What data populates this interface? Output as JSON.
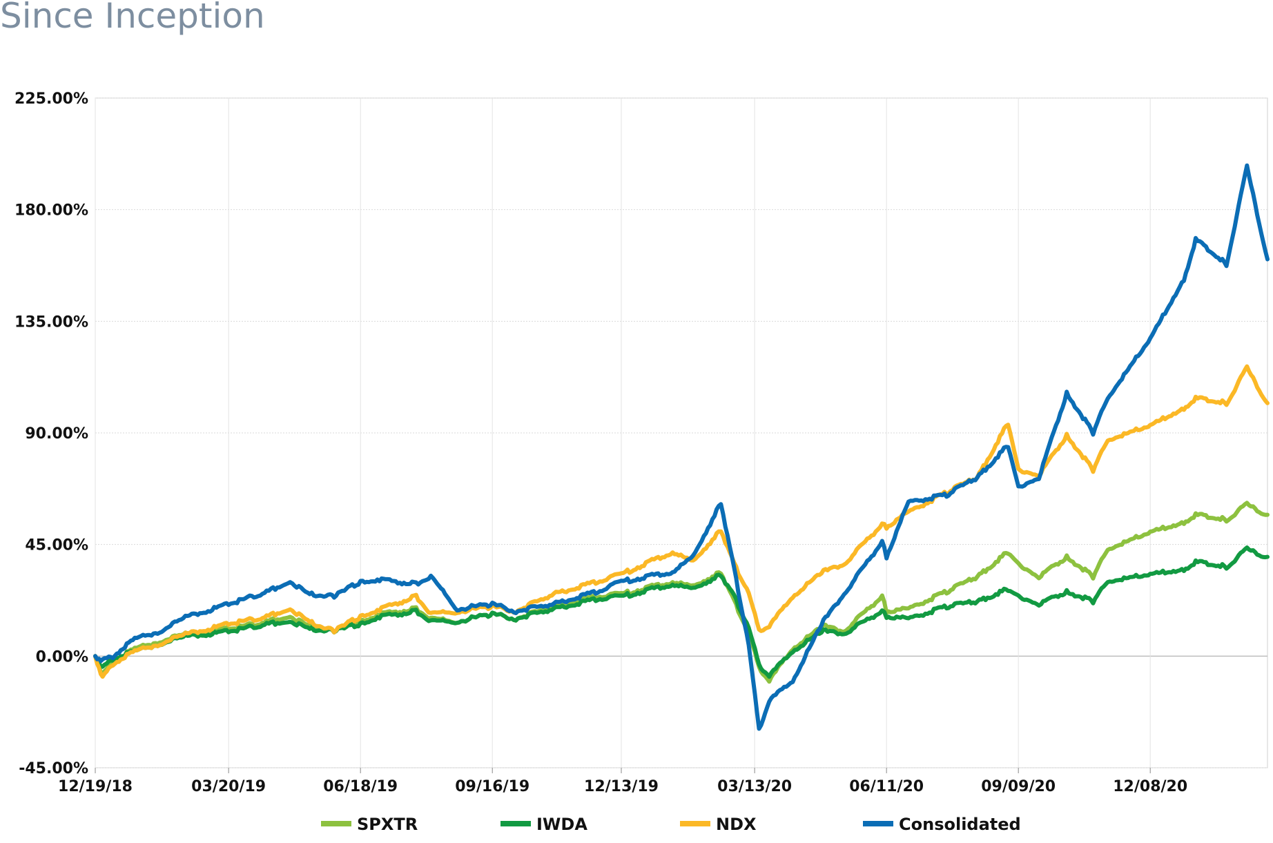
{
  "title": "Since Inception",
  "chart_data": {
    "type": "line",
    "title": "Since Inception",
    "xlabel": "",
    "ylabel": "",
    "ylim": [
      -45,
      225
    ],
    "y_ticks": [
      "225.00%",
      "180.00%",
      "135.00%",
      "90.00%",
      "45.00%",
      "0.00%",
      "-45.00%"
    ],
    "y_tick_values": [
      225,
      180,
      135,
      90,
      45,
      0,
      -45
    ],
    "x_ticks": [
      "12/19/18",
      "03/20/19",
      "06/18/19",
      "09/16/19",
      "12/13/19",
      "03/13/20",
      "06/11/20",
      "09/09/20",
      "12/08/20"
    ],
    "x_tick_dates": [
      "2018-12-19",
      "2019-03-20",
      "2019-06-18",
      "2019-09-16",
      "2019-12-13",
      "2020-03-13",
      "2020-06-11",
      "2020-09-09",
      "2020-12-08"
    ],
    "x_range": [
      "2018-12-19",
      "2021-02-26"
    ],
    "grid": true,
    "legend_position": "bottom",
    "series": [
      {
        "name": "SPXTR",
        "color": "#8dc13f",
        "points": [
          [
            "2018-12-19",
            0
          ],
          [
            "2018-12-24",
            -8
          ],
          [
            "2018-12-31",
            -2
          ],
          [
            "2019-01-15",
            3
          ],
          [
            "2019-02-01",
            6
          ],
          [
            "2019-02-20",
            9
          ],
          [
            "2019-03-20",
            11
          ],
          [
            "2019-04-15",
            14
          ],
          [
            "2019-05-01",
            16
          ],
          [
            "2019-05-13",
            12
          ],
          [
            "2019-05-31",
            10
          ],
          [
            "2019-06-18",
            14
          ],
          [
            "2019-07-01",
            17
          ],
          [
            "2019-07-26",
            19
          ],
          [
            "2019-08-05",
            15
          ],
          [
            "2019-08-23",
            14
          ],
          [
            "2019-09-16",
            17
          ],
          [
            "2019-10-02",
            15
          ],
          [
            "2019-10-28",
            20
          ],
          [
            "2019-11-27",
            24
          ],
          [
            "2019-12-13",
            25
          ],
          [
            "2020-01-17",
            30
          ],
          [
            "2020-01-31",
            28
          ],
          [
            "2020-02-19",
            34
          ],
          [
            "2020-02-28",
            22
          ],
          [
            "2020-03-09",
            10
          ],
          [
            "2020-03-16",
            -5
          ],
          [
            "2020-03-23",
            -10
          ],
          [
            "2020-04-08",
            3
          ],
          [
            "2020-04-29",
            12
          ],
          [
            "2020-05-13",
            10
          ],
          [
            "2020-06-08",
            24
          ],
          [
            "2020-06-11",
            18
          ],
          [
            "2020-06-26",
            19
          ],
          [
            "2020-07-22",
            26
          ],
          [
            "2020-08-12",
            32
          ],
          [
            "2020-09-02",
            42
          ],
          [
            "2020-09-09",
            37
          ],
          [
            "2020-09-23",
            32
          ],
          [
            "2020-10-12",
            40
          ],
          [
            "2020-10-30",
            32
          ],
          [
            "2020-11-09",
            43
          ],
          [
            "2020-12-08",
            50
          ],
          [
            "2020-12-31",
            54
          ],
          [
            "2021-01-08",
            57
          ],
          [
            "2021-01-29",
            55
          ],
          [
            "2021-02-12",
            61
          ],
          [
            "2021-02-26",
            57
          ]
        ]
      },
      {
        "name": "IWDA",
        "color": "#129a42",
        "points": [
          [
            "2018-12-19",
            0
          ],
          [
            "2018-12-24",
            -5
          ],
          [
            "2018-12-31",
            -1
          ],
          [
            "2019-01-15",
            2
          ],
          [
            "2019-02-01",
            5
          ],
          [
            "2019-02-20",
            8
          ],
          [
            "2019-03-20",
            10
          ],
          [
            "2019-04-15",
            13
          ],
          [
            "2019-05-01",
            14
          ],
          [
            "2019-05-13",
            11
          ],
          [
            "2019-05-31",
            10
          ],
          [
            "2019-06-18",
            13
          ],
          [
            "2019-07-01",
            16
          ],
          [
            "2019-07-26",
            18
          ],
          [
            "2019-08-05",
            14
          ],
          [
            "2019-08-23",
            14
          ],
          [
            "2019-09-16",
            17
          ],
          [
            "2019-10-02",
            15
          ],
          [
            "2019-10-28",
            19
          ],
          [
            "2019-11-27",
            23
          ],
          [
            "2019-12-13",
            24
          ],
          [
            "2020-01-17",
            29
          ],
          [
            "2020-01-31",
            27
          ],
          [
            "2020-02-19",
            33
          ],
          [
            "2020-02-28",
            24
          ],
          [
            "2020-03-09",
            12
          ],
          [
            "2020-03-16",
            -4
          ],
          [
            "2020-03-23",
            -8
          ],
          [
            "2020-04-08",
            2
          ],
          [
            "2020-04-29",
            10
          ],
          [
            "2020-05-13",
            9
          ],
          [
            "2020-06-08",
            18
          ],
          [
            "2020-06-11",
            16
          ],
          [
            "2020-06-26",
            15
          ],
          [
            "2020-07-22",
            20
          ],
          [
            "2020-08-12",
            22
          ],
          [
            "2020-09-02",
            27
          ],
          [
            "2020-09-09",
            24
          ],
          [
            "2020-09-23",
            21
          ],
          [
            "2020-10-12",
            26
          ],
          [
            "2020-10-30",
            22
          ],
          [
            "2020-11-09",
            30
          ],
          [
            "2020-12-08",
            33
          ],
          [
            "2020-12-31",
            35
          ],
          [
            "2021-01-08",
            38
          ],
          [
            "2021-01-29",
            36
          ],
          [
            "2021-02-12",
            43
          ],
          [
            "2021-02-26",
            40
          ]
        ]
      },
      {
        "name": "NDX",
        "color": "#fbb826",
        "points": [
          [
            "2018-12-19",
            0
          ],
          [
            "2018-12-24",
            -9
          ],
          [
            "2018-12-31",
            -3
          ],
          [
            "2019-01-15",
            2
          ],
          [
            "2019-02-01",
            5
          ],
          [
            "2019-02-20",
            9
          ],
          [
            "2019-03-20",
            13
          ],
          [
            "2019-04-15",
            16
          ],
          [
            "2019-05-01",
            19
          ],
          [
            "2019-05-13",
            14
          ],
          [
            "2019-05-31",
            10
          ],
          [
            "2019-06-18",
            16
          ],
          [
            "2019-07-01",
            19
          ],
          [
            "2019-07-26",
            24
          ],
          [
            "2019-08-05",
            17
          ],
          [
            "2019-08-23",
            18
          ],
          [
            "2019-09-16",
            20
          ],
          [
            "2019-10-02",
            18
          ],
          [
            "2019-10-28",
            25
          ],
          [
            "2019-11-27",
            30
          ],
          [
            "2019-12-13",
            33
          ],
          [
            "2020-01-17",
            42
          ],
          [
            "2020-01-31",
            38
          ],
          [
            "2020-02-19",
            51
          ],
          [
            "2020-02-28",
            37
          ],
          [
            "2020-03-09",
            26
          ],
          [
            "2020-03-16",
            10
          ],
          [
            "2020-03-23",
            12
          ],
          [
            "2020-04-08",
            24
          ],
          [
            "2020-04-29",
            34
          ],
          [
            "2020-05-13",
            37
          ],
          [
            "2020-06-08",
            53
          ],
          [
            "2020-06-11",
            52
          ],
          [
            "2020-06-26",
            58
          ],
          [
            "2020-07-22",
            66
          ],
          [
            "2020-08-12",
            72
          ],
          [
            "2020-09-02",
            94
          ],
          [
            "2020-09-09",
            75
          ],
          [
            "2020-09-23",
            73
          ],
          [
            "2020-10-12",
            89
          ],
          [
            "2020-10-30",
            75
          ],
          [
            "2020-11-09",
            87
          ],
          [
            "2020-12-08",
            93
          ],
          [
            "2020-12-31",
            100
          ],
          [
            "2021-01-08",
            104
          ],
          [
            "2021-01-29",
            102
          ],
          [
            "2021-02-12",
            116
          ],
          [
            "2021-02-26",
            102
          ]
        ]
      },
      {
        "name": "Consolidated",
        "color": "#0b6db5",
        "points": [
          [
            "2018-12-19",
            0
          ],
          [
            "2018-12-24",
            -2
          ],
          [
            "2018-12-31",
            0
          ],
          [
            "2019-01-15",
            7
          ],
          [
            "2019-02-01",
            10
          ],
          [
            "2019-02-20",
            16
          ],
          [
            "2019-03-20",
            21
          ],
          [
            "2019-04-15",
            26
          ],
          [
            "2019-05-01",
            30
          ],
          [
            "2019-05-13",
            25
          ],
          [
            "2019-05-31",
            24
          ],
          [
            "2019-06-18",
            30
          ],
          [
            "2019-07-01",
            31
          ],
          [
            "2019-07-26",
            29
          ],
          [
            "2019-08-05",
            32
          ],
          [
            "2019-08-23",
            19
          ],
          [
            "2019-09-16",
            21
          ],
          [
            "2019-10-02",
            18
          ],
          [
            "2019-10-28",
            21
          ],
          [
            "2019-11-27",
            26
          ],
          [
            "2019-12-13",
            30
          ],
          [
            "2020-01-17",
            34
          ],
          [
            "2020-01-31",
            40
          ],
          [
            "2020-02-19",
            62
          ],
          [
            "2020-02-28",
            35
          ],
          [
            "2020-03-09",
            5
          ],
          [
            "2020-03-16",
            -30
          ],
          [
            "2020-03-23",
            -18
          ],
          [
            "2020-04-08",
            -10
          ],
          [
            "2020-04-29",
            14
          ],
          [
            "2020-05-13",
            25
          ],
          [
            "2020-06-08",
            46
          ],
          [
            "2020-06-11",
            40
          ],
          [
            "2020-06-26",
            62
          ],
          [
            "2020-07-22",
            65
          ],
          [
            "2020-08-12",
            72
          ],
          [
            "2020-09-02",
            85
          ],
          [
            "2020-09-09",
            68
          ],
          [
            "2020-09-23",
            72
          ],
          [
            "2020-10-12",
            106
          ],
          [
            "2020-10-30",
            90
          ],
          [
            "2020-11-09",
            104
          ],
          [
            "2020-12-08",
            128
          ],
          [
            "2020-12-31",
            152
          ],
          [
            "2021-01-08",
            168
          ],
          [
            "2021-01-29",
            158
          ],
          [
            "2021-02-12",
            197
          ],
          [
            "2021-02-26",
            160
          ]
        ]
      }
    ]
  }
}
